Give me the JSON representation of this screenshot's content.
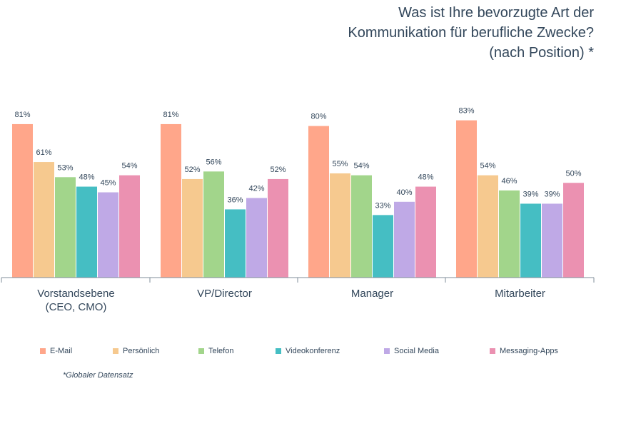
{
  "chart_data": {
    "type": "bar",
    "title_lines": [
      "Was ist Ihre bevorzugte Art der",
      "Kommunikation für berufliche Zwecke?",
      "(nach Position) *"
    ],
    "categories": [
      [
        "Vorstandsebene",
        "(CEO, CMO)"
      ],
      [
        "VP/Director"
      ],
      [
        "Manager"
      ],
      [
        "Mitarbeiter"
      ]
    ],
    "series": [
      {
        "name": "E-Mail",
        "color": "#ffa68a",
        "values": [
          81,
          81,
          80,
          83
        ]
      },
      {
        "name": "Persönlich",
        "color": "#f6c98f",
        "values": [
          61,
          52,
          55,
          54
        ]
      },
      {
        "name": "Telefon",
        "color": "#a2d58b",
        "values": [
          53,
          56,
          54,
          46
        ]
      },
      {
        "name": "Videokonferenz",
        "color": "#45bec3",
        "values": [
          48,
          36,
          33,
          39
        ]
      },
      {
        "name": "Social Media",
        "color": "#bfa9e6",
        "values": [
          45,
          42,
          40,
          39
        ]
      },
      {
        "name": "Messaging-Apps",
        "color": "#eb91b1",
        "values": [
          54,
          52,
          48,
          50
        ]
      }
    ],
    "value_suffix": "%",
    "ylim": [
      0,
      100
    ],
    "grid": false,
    "legend_position": "bottom",
    "footnote": "*Globaler Datensatz"
  }
}
